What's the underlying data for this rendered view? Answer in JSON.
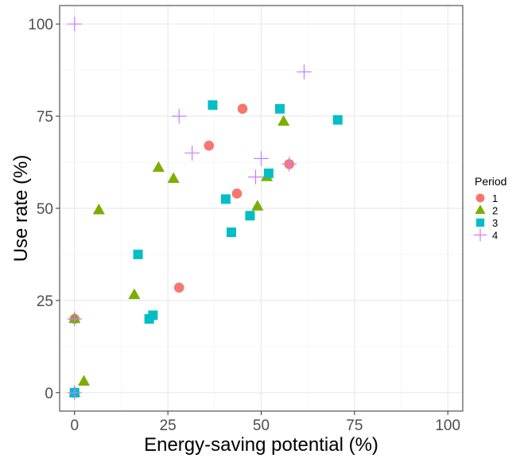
{
  "chart_data": {
    "type": "scatter",
    "title": "",
    "xlabel": "Energy-saving potential (%)",
    "ylabel": "Use rate (%)",
    "xlim": [
      -4,
      104
    ],
    "ylim": [
      -5,
      105
    ],
    "xticks": [
      0,
      25,
      50,
      75,
      100
    ],
    "yticks": [
      0,
      25,
      50,
      75,
      100
    ],
    "xtick_labels": [
      "0",
      "25",
      "50",
      "75",
      "100"
    ],
    "ytick_labels": [
      "0",
      "25",
      "50",
      "75",
      "100"
    ],
    "grid": true,
    "legend": {
      "title": "Period",
      "placement": "right"
    },
    "series": [
      {
        "name": "1",
        "shape": "circle",
        "color": "#F8766D",
        "points": [
          [
            0,
            0
          ],
          [
            0,
            20
          ],
          [
            28,
            28.5
          ],
          [
            36,
            67
          ],
          [
            43.5,
            54
          ],
          [
            45,
            77
          ],
          [
            57.5,
            62
          ]
        ]
      },
      {
        "name": "2",
        "shape": "triangle",
        "color": "#7CAE00",
        "points": [
          [
            0,
            0
          ],
          [
            0,
            20
          ],
          [
            2.5,
            3
          ],
          [
            6.5,
            49.5
          ],
          [
            16,
            26.5
          ],
          [
            22.5,
            61
          ],
          [
            26.5,
            58
          ],
          [
            49,
            50.5
          ],
          [
            51.5,
            58.5
          ],
          [
            56,
            73.5
          ]
        ]
      },
      {
        "name": "3",
        "shape": "square",
        "color": "#00BFC4",
        "points": [
          [
            0,
            0
          ],
          [
            17,
            37.5
          ],
          [
            20,
            20
          ],
          [
            21,
            21
          ],
          [
            37,
            78
          ],
          [
            40.5,
            52.5
          ],
          [
            42,
            43.5
          ],
          [
            47,
            48
          ],
          [
            52,
            59.5
          ],
          [
            55,
            77
          ],
          [
            70.5,
            74
          ]
        ]
      },
      {
        "name": "4",
        "shape": "cross",
        "color": "#C77CFF",
        "points": [
          [
            0,
            0
          ],
          [
            0,
            100
          ],
          [
            0,
            20
          ],
          [
            28,
            75
          ],
          [
            31.5,
            65
          ],
          [
            48.5,
            58.5
          ],
          [
            50,
            63.5
          ],
          [
            57.5,
            62
          ],
          [
            61.5,
            87
          ]
        ]
      }
    ]
  }
}
